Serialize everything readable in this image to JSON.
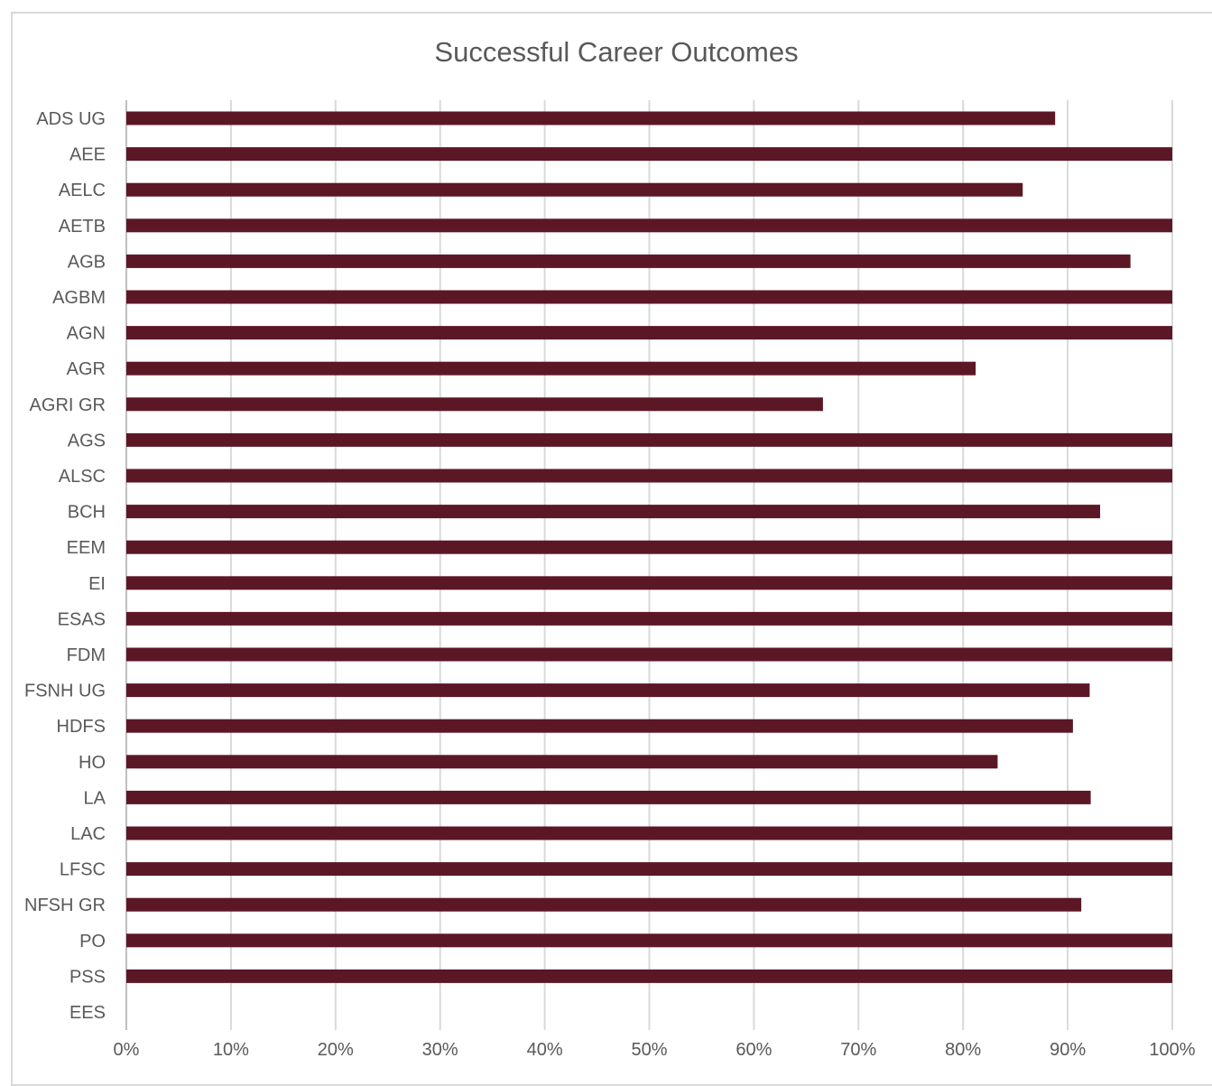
{
  "chart_data": {
    "type": "bar",
    "orientation": "horizontal",
    "title": "Successful Career Outcomes",
    "xlabel": "",
    "ylabel": "",
    "xlim": [
      0,
      100
    ],
    "x_ticks": [
      "0%",
      "10%",
      "20%",
      "30%",
      "40%",
      "50%",
      "60%",
      "70%",
      "80%",
      "90%",
      "100%"
    ],
    "grid": true,
    "legend": "none",
    "bar_color": "#5c1726",
    "categories": [
      "ADS UG",
      "AEE",
      "AELC",
      "AETB",
      "AGB",
      "AGBM",
      "AGN",
      "AGR",
      "AGRI GR",
      "AGS",
      "ALSC",
      "BCH",
      "EEM",
      "EI",
      "ESAS",
      "FDM",
      "FSNH UG",
      "HDFS",
      "HO",
      "LA",
      "LAC",
      "LFSC",
      "NFSH GR",
      "PO",
      "PSS",
      "EES"
    ],
    "values": [
      88.8,
      100,
      85.7,
      100,
      96,
      100,
      100,
      81.2,
      66.6,
      100,
      100,
      93.1,
      100,
      100,
      100,
      100,
      92.1,
      90.5,
      83.3,
      92.2,
      100,
      100,
      91.3,
      100,
      100,
      0
    ]
  }
}
